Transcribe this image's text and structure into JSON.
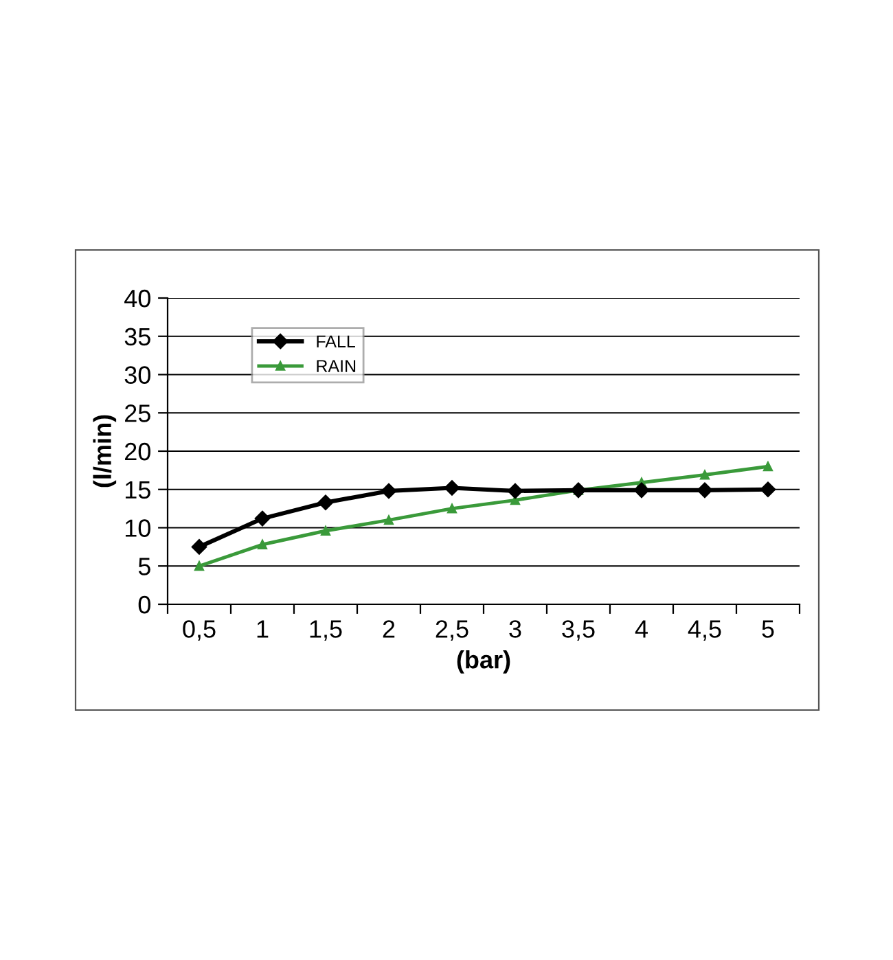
{
  "chart_data": {
    "type": "line",
    "xlabel": "(bar)",
    "ylabel": "(l/min)",
    "categories": [
      "0,5",
      "1",
      "1,5",
      "2",
      "2,5",
      "3",
      "3,5",
      "4",
      "4,5",
      "5"
    ],
    "series": [
      {
        "name": "FALL",
        "color": "#000000",
        "marker": "diamond",
        "values": [
          7.5,
          11.2,
          13.3,
          14.8,
          15.2,
          14.8,
          14.9,
          14.9,
          14.9,
          15.0
        ]
      },
      {
        "name": "RAIN",
        "color": "#3a9a3a",
        "marker": "triangle",
        "values": [
          5.0,
          7.8,
          9.6,
          11.0,
          12.5,
          13.6,
          14.9,
          15.9,
          16.9,
          18.0
        ]
      }
    ],
    "ylim": [
      0,
      40
    ],
    "yticks": [
      0,
      5,
      10,
      15,
      20,
      25,
      30,
      35,
      40
    ],
    "grid": "y",
    "legend": "top left"
  }
}
